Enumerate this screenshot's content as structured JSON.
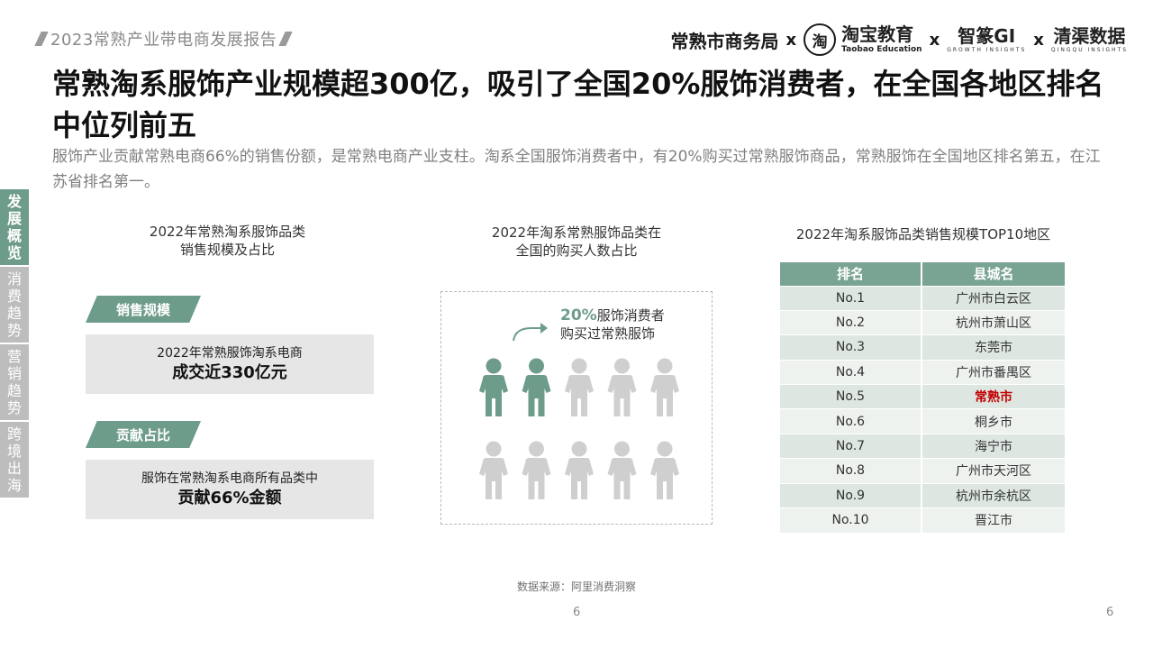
{
  "header": {
    "report_title": "2023常熟产业带电商发展报告",
    "partners": {
      "p1": "常熟市商务局",
      "x": "x",
      "taobao_glyph": "淘",
      "taobao_main": "淘宝教育",
      "taobao_sub": "Taobao Education",
      "p3_main": "智篆GI",
      "p3_sub": "GROWTH INSIGHTS",
      "p4_main": "清渠数据",
      "p4_sub": "QINGQU INSIGHTS"
    }
  },
  "title": "常熟淘系服饰产业规模超300亿，吸引了全国20%服饰消费者，在全国各地区排名中位列前五",
  "subtitle": "服饰产业贡献常熟电商66%的销售份额，是常熟电商产业支柱。淘系全国服饰消费者中，有20%购买过常熟服饰商品，常熟服饰在全国地区排名第五，在江苏省排名第一。",
  "sidenav": [
    {
      "label": "发展概览",
      "active": true
    },
    {
      "label": "消费趋势",
      "active": false
    },
    {
      "label": "营销趋势",
      "active": false
    },
    {
      "label": "跨境出海",
      "active": false
    }
  ],
  "left": {
    "heading_1": "2022年常熟淘系服饰品类",
    "heading_2": "销售规模及占比",
    "tag1": "销售规模",
    "box1_line1": "2022年常熟服饰淘系电商",
    "box1_line2": "成交近330亿元",
    "tag2": "贡献占比",
    "box2_line1": "服饰在常熟淘系电商所有品类中",
    "box2_line2": "贡献66%金额"
  },
  "middle": {
    "heading_1": "2022年淘系常熟服饰品类在",
    "heading_2": "全国的购买人数占比",
    "callout_pct": "20%",
    "callout_rest": "服饰消费者",
    "callout_line2": "购买过常熟服饰",
    "share": 0.2,
    "highlight_color": "#6e9c8a",
    "base_color": "#cfcfcf"
  },
  "right": {
    "heading": "2022年淘系服饰品类销售规模TOP10地区",
    "columns": [
      "排名",
      "县城名"
    ],
    "rows": [
      {
        "rank": "No.1",
        "name": "广州市白云区"
      },
      {
        "rank": "No.2",
        "name": "杭州市萧山区"
      },
      {
        "rank": "No.3",
        "name": "东莞市"
      },
      {
        "rank": "No.4",
        "name": "广州市番禺区"
      },
      {
        "rank": "No.5",
        "name": "常熟市"
      },
      {
        "rank": "No.6",
        "name": "桐乡市"
      },
      {
        "rank": "No.7",
        "name": "海宁市"
      },
      {
        "rank": "No.8",
        "name": "广州市天河区"
      },
      {
        "rank": "No.9",
        "name": "杭州市余杭区"
      },
      {
        "rank": "No.10",
        "name": "晋江市"
      }
    ],
    "highlight_row": 4
  },
  "footer": {
    "source": "数据来源：阿里消费洞察",
    "page_center": "6",
    "page_right": "6"
  }
}
